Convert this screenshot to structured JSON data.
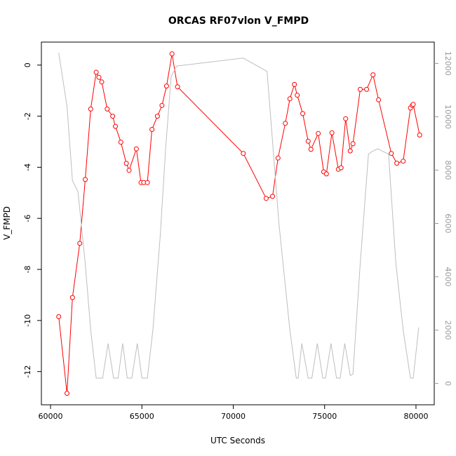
{
  "chart_data": {
    "type": "line",
    "title": "ORCAS RF07vlon V_FMPD",
    "xlabel": "UTC Seconds",
    "ylabel": "V_FMPD",
    "xlim": [
      59500,
      81000
    ],
    "ylim": [
      -13.3,
      0.9
    ],
    "y2lim": [
      -800,
      12800
    ],
    "xticks": [
      60000,
      65000,
      70000,
      75000,
      80000
    ],
    "yticks": [
      0,
      -2,
      -4,
      -6,
      -8,
      -10,
      -12
    ],
    "y2ticks": [
      0,
      2000,
      4000,
      6000,
      8000,
      10000,
      12000
    ],
    "colors": {
      "primary": "#ff0000",
      "secondary": "#bebebe"
    },
    "series": [
      {
        "axis": "left",
        "style": "line+markers",
        "color": "#ff0000",
        "x": [
          60450,
          60900,
          61200,
          61600,
          61900,
          62200,
          62500,
          62650,
          62800,
          63100,
          63400,
          63550,
          63850,
          64150,
          64300,
          64700,
          64950,
          65100,
          65300,
          65550,
          65850,
          66100,
          66350,
          66650,
          66950,
          70550,
          71800,
          72150,
          72450,
          72850,
          73100,
          73350,
          73500,
          73800,
          74100,
          74250,
          74650,
          74950,
          75100,
          75400,
          75750,
          75900,
          76150,
          76400,
          76550,
          76950,
          77300,
          77650,
          77950,
          78650,
          78950,
          79300,
          79700,
          79800,
          79850,
          80200
        ],
        "y": [
          -9.85,
          -12.85,
          -9.1,
          -6.98,
          -4.48,
          -1.72,
          -0.28,
          -0.48,
          -0.66,
          -1.72,
          -2.0,
          -2.4,
          -3.02,
          -3.85,
          -4.12,
          -3.28,
          -4.6,
          -4.6,
          -4.6,
          -2.52,
          -2.0,
          -1.58,
          -0.82,
          0.44,
          -0.85,
          -3.46,
          -5.22,
          -5.14,
          -3.64,
          -2.28,
          -1.32,
          -0.76,
          -1.18,
          -1.9,
          -2.98,
          -3.3,
          -2.68,
          -4.18,
          -4.26,
          -2.65,
          -4.08,
          -4.02,
          -2.1,
          -3.36,
          -3.08,
          -0.95,
          -0.95,
          -0.38,
          -1.36,
          -3.46,
          -3.84,
          -3.76,
          -1.68,
          -1.58,
          -1.54,
          -2.74
        ]
      },
      {
        "axis": "right",
        "style": "line",
        "color": "#bebebe",
        "x": [
          60450,
          60900,
          61200,
          61500,
          61900,
          62200,
          62500,
          62850,
          63150,
          63450,
          63700,
          63950,
          64200,
          64450,
          64750,
          65000,
          65300,
          65600,
          66000,
          66300,
          66600,
          66900,
          70550,
          71850,
          72500,
          73100,
          73450,
          73550,
          73750,
          74100,
          74300,
          74600,
          74900,
          75050,
          75350,
          75650,
          75850,
          76100,
          76400,
          76550,
          76950,
          77400,
          77600,
          77900,
          78200,
          78500,
          78900,
          79300,
          79700,
          79850,
          80150
        ],
        "y": [
          12400,
          10400,
          7600,
          7200,
          4500,
          2000,
          200,
          200,
          1500,
          200,
          200,
          1500,
          200,
          200,
          1500,
          200,
          200,
          2000,
          5500,
          8800,
          11500,
          11900,
          12200,
          11700,
          6000,
          2000,
          200,
          200,
          1500,
          200,
          200,
          1500,
          200,
          200,
          1500,
          200,
          200,
          1500,
          300,
          350,
          4500,
          8600,
          8700,
          8800,
          8700,
          8600,
          4500,
          2000,
          200,
          200,
          2100
        ]
      }
    ]
  }
}
